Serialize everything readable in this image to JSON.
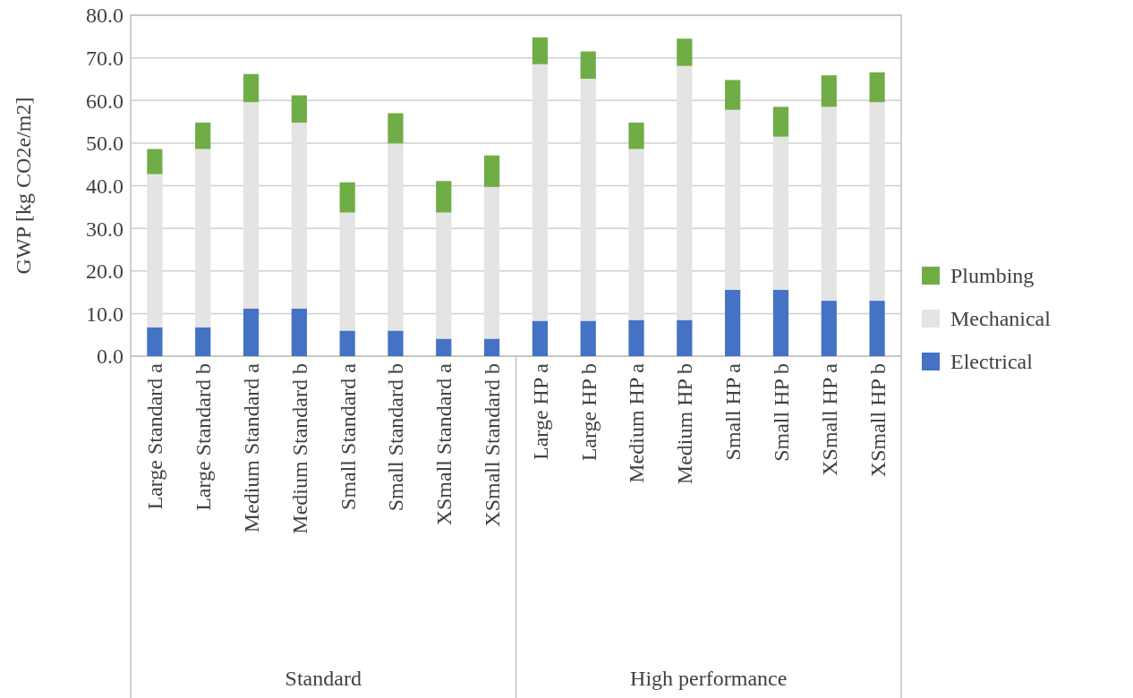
{
  "chart_data": {
    "type": "bar",
    "stacked": true,
    "ylabel": "GWP [kg CO2e/m2]",
    "categories": [
      "Large Standard a",
      "Large Standard b",
      "Medium Standard a",
      "Medium Standard b",
      "Small Standard a",
      "Small Standard b",
      "XSmall Standard a",
      "XSmall Standard b",
      "Large HP a",
      "Large HP b",
      "Medium HP a",
      "Medium HP b",
      "Small HP a",
      "Small HP b",
      "XSmall HP a",
      "XSmall HP b"
    ],
    "series": [
      {
        "name": "Electrical",
        "color": "#4472c4",
        "values": [
          6.8,
          6.8,
          11.2,
          11.2,
          6.0,
          6.0,
          4.1,
          4.1,
          8.3,
          8.3,
          8.5,
          8.5,
          15.6,
          15.6,
          13.0,
          13.0
        ]
      },
      {
        "name": "Mechanical",
        "color": "#e4e4e4",
        "values": [
          35.9,
          41.8,
          48.4,
          43.6,
          27.7,
          43.9,
          29.6,
          35.6,
          60.2,
          56.8,
          40.1,
          59.6,
          42.2,
          35.9,
          45.5,
          46.6
        ]
      },
      {
        "name": "Plumbing",
        "color": "#70ad47",
        "values": [
          5.9,
          6.2,
          6.6,
          6.4,
          7.1,
          7.1,
          7.4,
          7.4,
          6.3,
          6.4,
          6.2,
          6.4,
          7.0,
          7.0,
          7.4,
          7.0
        ]
      }
    ],
    "ylim": [
      0,
      80
    ],
    "yticks": [
      {
        "value": 0,
        "label": "0.0"
      },
      {
        "value": 10,
        "label": "10.0"
      },
      {
        "value": 20,
        "label": "20.0"
      },
      {
        "value": 30,
        "label": "30.0"
      },
      {
        "value": 40,
        "label": "40.0"
      },
      {
        "value": 50,
        "label": "50.0"
      },
      {
        "value": 60,
        "label": "60.0"
      },
      {
        "value": 70,
        "label": "70.0"
      },
      {
        "value": 80,
        "label": "80.0"
      }
    ],
    "grid": "y",
    "legend": "right",
    "annotations": [
      "Standard",
      "High performance"
    ]
  }
}
